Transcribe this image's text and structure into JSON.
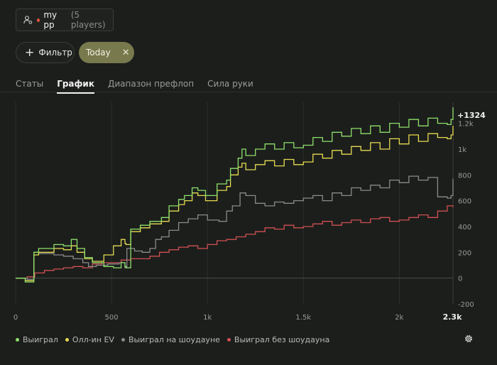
{
  "player_selector": {
    "name": "my pp",
    "count_text": "(5 players)",
    "icon": "user-settings-icon"
  },
  "filter_button": {
    "label": "Фильтр",
    "icon": "plus-icon"
  },
  "active_filter": {
    "label": "Today",
    "icon": "close-icon",
    "color": "#78794d"
  },
  "tabs": [
    {
      "label": "Статы",
      "active": false
    },
    {
      "label": "График",
      "active": true
    },
    {
      "label": "Диапазон префлоп",
      "active": false
    },
    {
      "label": "Сила руки",
      "active": false
    }
  ],
  "settings": {
    "icon": "gear-icon"
  },
  "chart_data": {
    "type": "line",
    "x_ticks": [
      "0",
      "500",
      "1k",
      "1.5k",
      "2k",
      "2.3k"
    ],
    "x_tick_values": [
      0,
      500,
      1000,
      1500,
      2000,
      2300
    ],
    "y_ticks": [
      "-200",
      "0",
      "200",
      "400",
      "600",
      "800",
      "1k",
      "1.2k"
    ],
    "y_tick_values": [
      -200,
      0,
      200,
      400,
      600,
      800,
      1000,
      1200
    ],
    "xlim": [
      0,
      2280
    ],
    "ylim": [
      -200,
      1330
    ],
    "end_label": "+1324",
    "grid": "vertical",
    "legend_position": "bottom-left",
    "series": [
      {
        "name": "Выиграл",
        "color": "#8ee06a",
        "x": [
          0,
          50,
          90,
          95,
          120,
          200,
          250,
          290,
          320,
          360,
          400,
          460,
          510,
          550,
          570,
          575,
          600,
          650,
          700,
          760,
          800,
          850,
          880,
          920,
          950,
          990,
          1050,
          1100,
          1120,
          1160,
          1180,
          1200,
          1250,
          1300,
          1350,
          1400,
          1450,
          1500,
          1550,
          1600,
          1650,
          1700,
          1750,
          1800,
          1850,
          1900,
          1950,
          2000,
          2050,
          2100,
          2150,
          2200,
          2250,
          2270,
          2280
        ],
        "y": [
          0,
          -30,
          -30,
          200,
          230,
          260,
          250,
          300,
          230,
          160,
          120,
          90,
          80,
          120,
          90,
          80,
          380,
          410,
          440,
          470,
          560,
          610,
          640,
          700,
          680,
          640,
          730,
          760,
          850,
          930,
          1000,
          950,
          1000,
          1040,
          1000,
          1050,
          1010,
          1030,
          1090,
          1060,
          1130,
          1100,
          1160,
          1120,
          1180,
          1130,
          1200,
          1170,
          1230,
          1180,
          1240,
          1200,
          1190,
          1230,
          1324
        ]
      },
      {
        "name": "Олл-ин EV",
        "color": "#e6dc50",
        "x": [
          0,
          50,
          90,
          95,
          120,
          200,
          250,
          290,
          320,
          360,
          400,
          460,
          510,
          550,
          570,
          575,
          600,
          650,
          700,
          760,
          800,
          850,
          880,
          920,
          950,
          990,
          1050,
          1100,
          1120,
          1160,
          1180,
          1200,
          1250,
          1300,
          1350,
          1400,
          1450,
          1500,
          1550,
          1600,
          1650,
          1700,
          1750,
          1800,
          1850,
          1900,
          1950,
          2000,
          2050,
          2100,
          2150,
          2200,
          2250,
          2270,
          2280
        ],
        "y": [
          0,
          -20,
          -20,
          180,
          200,
          230,
          220,
          250,
          200,
          150,
          130,
          180,
          250,
          300,
          270,
          260,
          360,
          390,
          420,
          440,
          520,
          570,
          600,
          660,
          640,
          600,
          680,
          710,
          800,
          860,
          890,
          840,
          880,
          910,
          870,
          920,
          880,
          900,
          960,
          930,
          990,
          960,
          1020,
          990,
          1050,
          1000,
          1080,
          1040,
          1110,
          1060,
          1120,
          1090,
          1080,
          1110,
          1180
        ]
      },
      {
        "name": "Выиграл на шоудауне",
        "color": "#8a8a8a",
        "x": [
          0,
          60,
          90,
          95,
          120,
          200,
          250,
          300,
          350,
          380,
          420,
          480,
          540,
          570,
          580,
          620,
          660,
          700,
          730,
          760,
          800,
          850,
          900,
          950,
          1000,
          1060,
          1100,
          1130,
          1170,
          1200,
          1250,
          1300,
          1350,
          1400,
          1450,
          1500,
          1550,
          1600,
          1650,
          1700,
          1750,
          1800,
          1850,
          1900,
          1950,
          2000,
          2050,
          2100,
          2150,
          2200,
          2250,
          2270,
          2280
        ],
        "y": [
          0,
          -10,
          -10,
          200,
          190,
          180,
          170,
          150,
          120,
          90,
          100,
          110,
          120,
          80,
          230,
          210,
          200,
          230,
          300,
          320,
          370,
          430,
          460,
          490,
          450,
          440,
          520,
          560,
          660,
          640,
          580,
          560,
          590,
          580,
          600,
          620,
          640,
          600,
          660,
          640,
          700,
          680,
          720,
          700,
          760,
          740,
          790,
          760,
          780,
          630,
          620,
          640,
          770
        ]
      },
      {
        "name": "Выиграл без шоудауна",
        "color": "#d05050",
        "x": [
          0,
          60,
          100,
          150,
          200,
          250,
          300,
          350,
          400,
          450,
          500,
          550,
          600,
          650,
          700,
          750,
          800,
          850,
          900,
          950,
          1000,
          1050,
          1100,
          1150,
          1200,
          1250,
          1300,
          1350,
          1400,
          1450,
          1500,
          1550,
          1600,
          1650,
          1700,
          1750,
          1800,
          1850,
          1900,
          1950,
          2000,
          2050,
          2100,
          2150,
          2200,
          2250,
          2280
        ],
        "y": [
          0,
          10,
          40,
          60,
          70,
          80,
          90,
          80,
          110,
          120,
          120,
          140,
          150,
          150,
          170,
          200,
          220,
          240,
          250,
          230,
          260,
          290,
          300,
          320,
          340,
          360,
          390,
          380,
          410,
          390,
          400,
          420,
          440,
          410,
          430,
          450,
          430,
          460,
          470,
          440,
          450,
          470,
          490,
          470,
          520,
          560,
          550
        ]
      }
    ]
  }
}
